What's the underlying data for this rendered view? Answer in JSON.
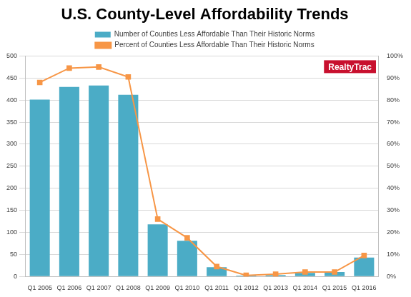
{
  "chart_data": {
    "type": "bar",
    "title": "U.S. County-Level Affordability Trends",
    "categories": [
      "Q1 2005",
      "Q1 2006",
      "Q1 2007",
      "Q1 2008",
      "Q1 2009",
      "Q1 2010",
      "Q1 2011",
      "Q1 2012",
      "Q1 2013",
      "Q1 2014",
      "Q1 2015",
      "Q1 2016"
    ],
    "series": [
      {
        "name": "Number of Counties Less Affordable Than Their Historic Norms",
        "type": "bar",
        "color": "#4bacc6",
        "values": [
          401,
          430,
          433,
          412,
          118,
          81,
          21,
          2,
          3,
          8,
          10,
          43
        ]
      },
      {
        "name": "Percent of Counties Less Affordable Than Their Historic Norms",
        "type": "line",
        "color": "#f79646",
        "marker": "square",
        "axis": "y2",
        "values": [
          88,
          94.5,
          95,
          90.5,
          26,
          17.5,
          4.5,
          0.5,
          1,
          2,
          2,
          9.5
        ]
      }
    ],
    "ylim": [
      0,
      500
    ],
    "yticks": [
      0,
      50,
      100,
      150,
      200,
      250,
      300,
      350,
      400,
      450,
      500
    ],
    "y2lim": [
      0,
      100
    ],
    "y2ticks": [
      {
        "value": 0,
        "label": "0%"
      },
      {
        "value": 10,
        "label": "10%"
      },
      {
        "value": 20,
        "label": "20%"
      },
      {
        "value": 30,
        "label": "30%"
      },
      {
        "value": 40,
        "label": "40%"
      },
      {
        "value": 50,
        "label": "50%"
      },
      {
        "value": 60,
        "label": "60%"
      },
      {
        "value": 70,
        "label": "70%"
      },
      {
        "value": 80,
        "label": "80%"
      },
      {
        "value": 90,
        "label": "90%"
      },
      {
        "value": 100,
        "label": "100%"
      }
    ],
    "grid": true,
    "legend": "top",
    "annotations": [
      "RealtyTrac"
    ]
  }
}
